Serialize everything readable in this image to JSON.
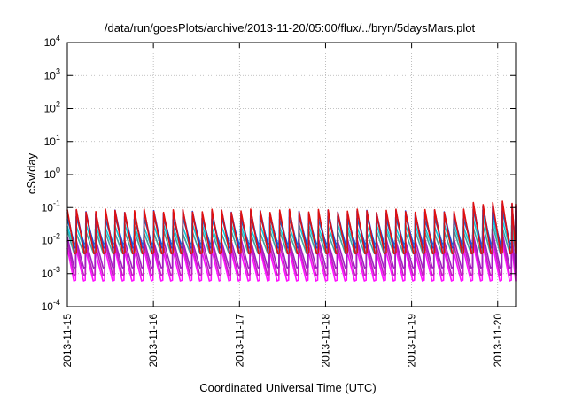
{
  "chart_data": {
    "type": "line",
    "title": "/data/run/goesPlots/archive/2013-11-20/05:00/flux/../bryn/5daysMars.plot",
    "xlabel": "Coordinated Universal Time (UTC)",
    "ylabel": "cSv/day",
    "yscale": "log",
    "ylim": [
      0.0001,
      10000
    ],
    "y_ticks": [
      {
        "value": 0.0001,
        "base": "10",
        "exp": "-4"
      },
      {
        "value": 0.001,
        "base": "10",
        "exp": "-3"
      },
      {
        "value": 0.01,
        "base": "10",
        "exp": "-2"
      },
      {
        "value": 0.1,
        "base": "10",
        "exp": "-1"
      },
      {
        "value": 1,
        "base": "10",
        "exp": "0"
      },
      {
        "value": 10,
        "base": "10",
        "exp": "1"
      },
      {
        "value": 100,
        "base": "10",
        "exp": "2"
      },
      {
        "value": 1000,
        "base": "10",
        "exp": "3"
      },
      {
        "value": 10000,
        "base": "10",
        "exp": "4"
      }
    ],
    "xlim": [
      "2013-11-15T00:00",
      "2013-11-20T05:00"
    ],
    "x_ticks": [
      "2013-11-15",
      "2013-11-16",
      "2013-11-17",
      "2013-11-18",
      "2013-11-19",
      "2013-11-20"
    ],
    "grid": true,
    "sawtooth_period_hours": 2.7,
    "series": [
      {
        "color": "#e01010",
        "peak": 0.08,
        "trough": 0.004,
        "late_peak": 0.14
      },
      {
        "color": "#2040e0",
        "peak": 0.075,
        "trough": 0.006,
        "late_peak": 0.12
      },
      {
        "color": "#1070d0",
        "peak": 0.05,
        "trough": 0.008,
        "late_peak": 0.08
      },
      {
        "color": "#10c8d8",
        "peak": 0.03,
        "trough": 0.006,
        "late_peak": 0.05
      },
      {
        "color": "#40a0a0",
        "peak": 0.02,
        "trough": 0.004,
        "late_peak": 0.03
      },
      {
        "color": "#a020c0",
        "peak": 0.012,
        "trough": 0.0015,
        "late_peak": 0.02
      },
      {
        "color": "#c020c0",
        "peak": 0.009,
        "trough": 0.0009,
        "late_peak": 0.015
      },
      {
        "color": "#ff10ff",
        "peak": 0.006,
        "trough": 0.0006,
        "late_peak": 0.01
      }
    ],
    "late_increase_start": "2013-11-19T15:00"
  }
}
